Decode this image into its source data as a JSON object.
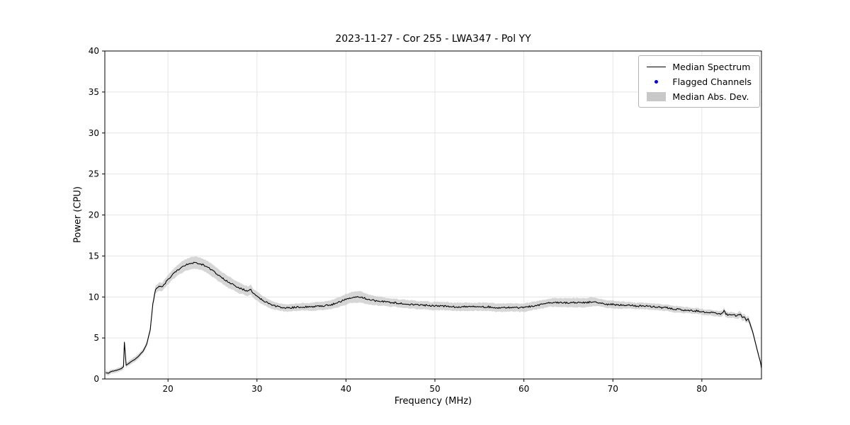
{
  "figure": {
    "title": "2023-11-27 - Cor 255 - LWA347 - Pol YY",
    "xlabel": "Frequency (MHz)",
    "ylabel": "Power (CPU)"
  },
  "legend": {
    "items": [
      {
        "label": "Median Spectrum",
        "type": "line",
        "color": "#000000"
      },
      {
        "label": "Flagged Channels",
        "type": "dot",
        "color": "#0000ff"
      },
      {
        "label": "Median Abs. Dev.",
        "type": "patch",
        "color": "#c8c8c8"
      }
    ]
  },
  "chart_data": {
    "type": "line",
    "title": "2023-11-27 - Cor 255 - LWA347 - Pol YY",
    "xlabel": "Frequency (MHz)",
    "ylabel": "Power (CPU)",
    "xlim": [
      12.9,
      86.7
    ],
    "ylim": [
      0,
      40
    ],
    "xticks": [
      20,
      30,
      40,
      50,
      60,
      70,
      80
    ],
    "yticks": [
      0,
      5,
      10,
      15,
      20,
      25,
      30,
      35,
      40
    ],
    "grid": true,
    "legend_position": "upper right",
    "series": [
      {
        "name": "Median Spectrum",
        "type": "line",
        "color": "#000000",
        "points_format": [
          "freq_mhz",
          "median_power_cpu",
          "median_abs_dev"
        ],
        "points": [
          [
            13.0,
            0.75,
            0.25
          ],
          [
            13.3,
            0.7,
            0.25
          ],
          [
            13.6,
            0.9,
            0.25
          ],
          [
            14.0,
            1.0,
            0.25
          ],
          [
            14.4,
            1.1,
            0.25
          ],
          [
            14.8,
            1.3,
            0.3
          ],
          [
            15.0,
            1.5,
            0.3
          ],
          [
            15.1,
            4.5,
            0.3
          ],
          [
            15.3,
            1.7,
            0.3
          ],
          [
            15.6,
            1.9,
            0.3
          ],
          [
            16.0,
            2.2,
            0.3
          ],
          [
            16.4,
            2.5,
            0.3
          ],
          [
            16.8,
            2.9,
            0.3
          ],
          [
            17.2,
            3.4,
            0.3
          ],
          [
            17.6,
            4.2,
            0.3
          ],
          [
            18.0,
            6.0,
            0.35
          ],
          [
            18.3,
            9.2,
            0.4
          ],
          [
            18.6,
            10.9,
            0.45
          ],
          [
            19.0,
            11.3,
            0.5
          ],
          [
            19.3,
            11.2,
            0.5
          ],
          [
            19.6,
            11.6,
            0.55
          ],
          [
            20.0,
            12.1,
            0.55
          ],
          [
            20.5,
            12.7,
            0.6
          ],
          [
            21.0,
            13.2,
            0.65
          ],
          [
            21.5,
            13.6,
            0.7
          ],
          [
            22.0,
            13.9,
            0.7
          ],
          [
            22.5,
            14.1,
            0.75
          ],
          [
            23.0,
            14.2,
            0.75
          ],
          [
            23.5,
            14.1,
            0.75
          ],
          [
            24.0,
            13.9,
            0.75
          ],
          [
            24.5,
            13.6,
            0.75
          ],
          [
            25.0,
            13.2,
            0.75
          ],
          [
            25.5,
            12.8,
            0.75
          ],
          [
            26.0,
            12.4,
            0.7
          ],
          [
            26.5,
            12.0,
            0.7
          ],
          [
            27.0,
            11.7,
            0.7
          ],
          [
            27.5,
            11.4,
            0.65
          ],
          [
            28.0,
            11.1,
            0.65
          ],
          [
            28.5,
            10.9,
            0.6
          ],
          [
            29.0,
            10.7,
            0.6
          ],
          [
            29.3,
            10.9,
            0.6
          ],
          [
            29.6,
            10.4,
            0.55
          ],
          [
            30.0,
            10.1,
            0.55
          ],
          [
            30.5,
            9.7,
            0.55
          ],
          [
            31.0,
            9.4,
            0.5
          ],
          [
            31.5,
            9.1,
            0.5
          ],
          [
            32.0,
            8.9,
            0.45
          ],
          [
            32.5,
            8.8,
            0.45
          ],
          [
            33.0,
            8.7,
            0.45
          ],
          [
            33.5,
            8.65,
            0.45
          ],
          [
            34.0,
            8.7,
            0.45
          ],
          [
            34.5,
            8.75,
            0.45
          ],
          [
            35.0,
            8.8,
            0.45
          ],
          [
            35.5,
            8.8,
            0.45
          ],
          [
            36.0,
            8.8,
            0.5
          ],
          [
            36.5,
            8.85,
            0.5
          ],
          [
            37.0,
            8.9,
            0.5
          ],
          [
            37.5,
            8.9,
            0.5
          ],
          [
            38.0,
            9.0,
            0.55
          ],
          [
            38.5,
            9.1,
            0.55
          ],
          [
            39.0,
            9.3,
            0.6
          ],
          [
            39.5,
            9.5,
            0.6
          ],
          [
            40.0,
            9.7,
            0.65
          ],
          [
            40.5,
            9.9,
            0.65
          ],
          [
            41.0,
            10.0,
            0.7
          ],
          [
            41.5,
            10.0,
            0.7
          ],
          [
            42.0,
            9.9,
            0.65
          ],
          [
            42.5,
            9.7,
            0.6
          ],
          [
            43.0,
            9.6,
            0.6
          ],
          [
            43.5,
            9.5,
            0.55
          ],
          [
            44.0,
            9.5,
            0.55
          ],
          [
            44.5,
            9.4,
            0.5
          ],
          [
            45.0,
            9.3,
            0.5
          ],
          [
            45.5,
            9.3,
            0.5
          ],
          [
            46.0,
            9.2,
            0.5
          ],
          [
            46.5,
            9.2,
            0.5
          ],
          [
            47.0,
            9.1,
            0.5
          ],
          [
            47.5,
            9.1,
            0.5
          ],
          [
            48.0,
            9.0,
            0.5
          ],
          [
            48.5,
            9.0,
            0.5
          ],
          [
            49.0,
            9.0,
            0.5
          ],
          [
            49.5,
            8.9,
            0.5
          ],
          [
            50.0,
            8.9,
            0.5
          ],
          [
            51.0,
            8.9,
            0.5
          ],
          [
            52.0,
            8.8,
            0.5
          ],
          [
            53.0,
            8.8,
            0.5
          ],
          [
            54.0,
            8.8,
            0.5
          ],
          [
            55.0,
            8.8,
            0.5
          ],
          [
            56.0,
            8.8,
            0.5
          ],
          [
            57.0,
            8.7,
            0.5
          ],
          [
            58.0,
            8.7,
            0.5
          ],
          [
            59.0,
            8.7,
            0.5
          ],
          [
            60.0,
            8.7,
            0.5
          ],
          [
            60.5,
            8.8,
            0.5
          ],
          [
            61.0,
            8.9,
            0.5
          ],
          [
            61.5,
            9.0,
            0.5
          ],
          [
            62.0,
            9.1,
            0.5
          ],
          [
            62.5,
            9.2,
            0.5
          ],
          [
            63.0,
            9.3,
            0.5
          ],
          [
            63.5,
            9.35,
            0.55
          ],
          [
            64.0,
            9.3,
            0.55
          ],
          [
            64.5,
            9.3,
            0.55
          ],
          [
            65.0,
            9.3,
            0.55
          ],
          [
            65.5,
            9.3,
            0.55
          ],
          [
            66.0,
            9.3,
            0.55
          ],
          [
            66.5,
            9.3,
            0.55
          ],
          [
            67.0,
            9.3,
            0.55
          ],
          [
            67.5,
            9.4,
            0.55
          ],
          [
            68.0,
            9.4,
            0.5
          ],
          [
            68.5,
            9.3,
            0.45
          ],
          [
            69.0,
            9.2,
            0.45
          ],
          [
            69.5,
            9.1,
            0.45
          ],
          [
            70.0,
            9.1,
            0.45
          ],
          [
            70.5,
            9.0,
            0.45
          ],
          [
            71.0,
            9.0,
            0.45
          ],
          [
            71.5,
            9.0,
            0.4
          ],
          [
            72.0,
            9.0,
            0.4
          ],
          [
            72.5,
            8.9,
            0.4
          ],
          [
            73.0,
            8.9,
            0.4
          ],
          [
            73.5,
            8.9,
            0.4
          ],
          [
            74.0,
            8.9,
            0.4
          ],
          [
            74.5,
            8.8,
            0.4
          ],
          [
            75.0,
            8.8,
            0.4
          ],
          [
            75.5,
            8.7,
            0.4
          ],
          [
            76.0,
            8.7,
            0.4
          ],
          [
            76.5,
            8.6,
            0.4
          ],
          [
            77.0,
            8.5,
            0.4
          ],
          [
            77.5,
            8.5,
            0.4
          ],
          [
            78.0,
            8.4,
            0.35
          ],
          [
            78.5,
            8.4,
            0.35
          ],
          [
            79.0,
            8.3,
            0.35
          ],
          [
            79.5,
            8.3,
            0.35
          ],
          [
            80.0,
            8.2,
            0.35
          ],
          [
            80.5,
            8.1,
            0.35
          ],
          [
            81.0,
            8.1,
            0.35
          ],
          [
            81.5,
            8.0,
            0.35
          ],
          [
            82.0,
            7.9,
            0.35
          ],
          [
            82.3,
            8.0,
            0.35
          ],
          [
            82.5,
            8.3,
            0.35
          ],
          [
            82.7,
            7.9,
            0.35
          ],
          [
            83.0,
            7.8,
            0.35
          ],
          [
            83.5,
            7.8,
            0.35
          ],
          [
            84.0,
            7.7,
            0.35
          ],
          [
            84.3,
            7.9,
            0.4
          ],
          [
            84.6,
            7.4,
            0.4
          ],
          [
            84.8,
            7.6,
            0.4
          ],
          [
            85.0,
            7.2,
            0.4
          ],
          [
            85.2,
            7.3,
            0.4
          ],
          [
            85.4,
            6.8,
            0.35
          ],
          [
            85.7,
            5.8,
            0.3
          ],
          [
            86.0,
            4.5,
            0.25
          ],
          [
            86.3,
            3.2,
            0.2
          ],
          [
            86.6,
            2.0,
            0.2
          ],
          [
            86.7,
            1.3,
            0.2
          ]
        ]
      },
      {
        "name": "Flagged Channels",
        "type": "scatter",
        "color": "#0000ff",
        "points": []
      },
      {
        "name": "Median Abs. Dev.",
        "type": "band",
        "color": "#c8c8c8",
        "derived_from": "median plus/minus median absolute deviation"
      }
    ]
  }
}
